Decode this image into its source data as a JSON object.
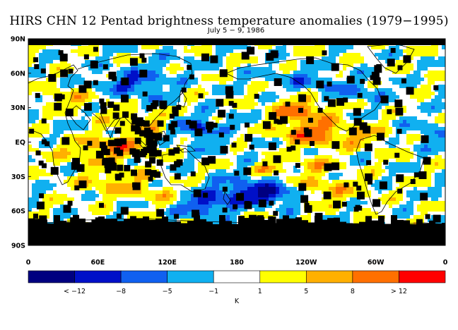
{
  "title": "HIRS CHN 12 Pentad brightness temperature anomalies (1979−1995)",
  "subtitle": "July 5 − 9, 1986",
  "lat_labels": [
    "90N",
    "60N",
    "30N",
    "EQ",
    "30S",
    "60S",
    "90S"
  ],
  "lon_labels": [
    "0",
    "60E",
    "120E",
    "180",
    "120W",
    "60W",
    "0"
  ],
  "colorbar": {
    "colors": [
      "#000080",
      "#0010c8",
      "#1060f0",
      "#10b0f0",
      "#ffffff",
      "#ffff00",
      "#ffb000",
      "#ff7000",
      "#ff0000"
    ],
    "labels": [
      "< −12",
      "−8",
      "−5",
      "−1",
      "1",
      "5",
      "8",
      "> 12"
    ],
    "unit": "K"
  },
  "colors": {
    "missing": "#000000",
    "land_outline": "#000000"
  }
}
